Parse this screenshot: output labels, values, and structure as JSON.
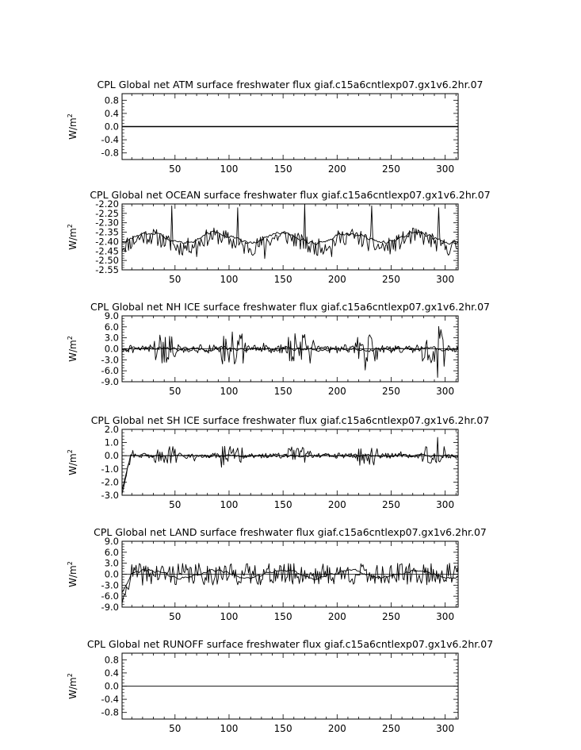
{
  "chart_data": [
    {
      "type": "line",
      "title": "CPL Global net ATM surface freshwater flux giaf.c15a6cntlexp07.gx1v6.2hr.07",
      "ylabel": "W/m",
      "ylabel_sup": "2",
      "xlim": [
        1,
        312
      ],
      "ylim": [
        -1.0,
        1.0
      ],
      "xticks": [
        50,
        100,
        150,
        200,
        250,
        300
      ],
      "yticks": [
        0.8,
        0.4,
        0.0,
        -0.4,
        -0.8
      ],
      "ytick_labels": [
        "0.8",
        "0.4",
        "0.0",
        "-0.4",
        "-0.8"
      ],
      "zero_line": true,
      "series": [
        {
          "kind": "flat",
          "value": 0.0,
          "width": 1.4
        }
      ]
    },
    {
      "type": "line",
      "title": "CPL Global net OCEAN surface freshwater flux giaf.c15a6cntlexp07.gx1v6.2hr.07",
      "ylabel": "W/m",
      "ylabel_sup": "2",
      "xlim": [
        1,
        312
      ],
      "ylim": [
        -2.55,
        -2.2
      ],
      "xticks": [
        50,
        100,
        150,
        200,
        250,
        300
      ],
      "yticks": [
        -2.2,
        -2.25,
        -2.3,
        -2.35,
        -2.4,
        -2.45,
        -2.5,
        -2.55
      ],
      "ytick_labels": [
        "-2.20",
        "-2.25",
        "-2.30",
        "-2.35",
        "-2.40",
        "-2.45",
        "-2.50",
        "-2.55"
      ],
      "zero_line": false,
      "series": [
        {
          "kind": "noise",
          "mean": -2.4,
          "seasonal": 0.03,
          "amp": 0.045,
          "seed": 11,
          "width": 0.9,
          "spikes": [
            [
              47,
              -2.21
            ],
            [
              108,
              -2.22
            ],
            [
              170,
              -2.2
            ],
            [
              232,
              -2.21
            ],
            [
              294,
              -2.22
            ],
            [
              70,
              -2.48
            ],
            [
              133,
              -2.49
            ],
            [
              195,
              -2.48
            ]
          ]
        },
        {
          "kind": "smooth",
          "mean": -2.38,
          "seasonal": 0.025,
          "amp": 0.008,
          "seed": 12,
          "width": 0.9
        }
      ]
    },
    {
      "type": "line",
      "title": "CPL Global net NH ICE surface freshwater flux giaf.c15a6cntlexp07.gx1v6.2hr.07",
      "ylabel": "W/m",
      "ylabel_sup": "2",
      "xlim": [
        1,
        312
      ],
      "ylim": [
        -9.0,
        9.0
      ],
      "xticks": [
        50,
        100,
        150,
        200,
        250,
        300
      ],
      "yticks": [
        9.0,
        6.0,
        3.0,
        0.0,
        -3.0,
        -6.0,
        -9.0
      ],
      "ytick_labels": [
        "9.0",
        "6.0",
        "3.0",
        "0.0",
        "-3.0",
        "-6.0",
        "-9.0"
      ],
      "zero_line": true,
      "series": [
        {
          "kind": "noise",
          "mean": 0.0,
          "seasonal": 0.0,
          "amp": 2.6,
          "seed": 21,
          "width": 0.9,
          "bursty": true
        },
        {
          "kind": "smooth",
          "mean": 0.0,
          "seasonal": 0.0,
          "amp": 0.4,
          "seed": 22,
          "width": 0.9
        }
      ]
    },
    {
      "type": "line",
      "title": "CPL Global net SH ICE surface freshwater flux giaf.c15a6cntlexp07.gx1v6.2hr.07",
      "ylabel": "W/m",
      "ylabel_sup": "2",
      "xlim": [
        1,
        312
      ],
      "ylim": [
        -3.0,
        2.0
      ],
      "xticks": [
        50,
        100,
        150,
        200,
        250,
        300
      ],
      "yticks": [
        2.0,
        1.0,
        0.0,
        -1.0,
        -2.0,
        -3.0
      ],
      "ytick_labels": [
        "2.0",
        "1.0",
        "0.0",
        "-1.0",
        "-2.0",
        "-3.0"
      ],
      "zero_line": true,
      "series": [
        {
          "kind": "noise",
          "mean": 0.0,
          "seasonal": 0.0,
          "amp": 0.45,
          "seed": 31,
          "width": 0.9,
          "bursty": true,
          "start_dip": -2.9
        },
        {
          "kind": "smooth",
          "mean": 0.0,
          "seasonal": 0.0,
          "amp": 0.08,
          "seed": 32,
          "width": 0.9,
          "start_dip": -2.6
        }
      ]
    },
    {
      "type": "line",
      "title": "CPL Global net LAND surface freshwater flux giaf.c15a6cntlexp07.gx1v6.2hr.07",
      "ylabel": "W/m",
      "ylabel_sup": "2",
      "xlim": [
        1,
        312
      ],
      "ylim": [
        -9.0,
        9.0
      ],
      "xticks": [
        50,
        100,
        150,
        200,
        250,
        300
      ],
      "yticks": [
        9.0,
        6.0,
        3.0,
        0.0,
        -3.0,
        -6.0,
        -9.0
      ],
      "ytick_labels": [
        "9.0",
        "6.0",
        "3.0",
        "0.0",
        "-3.0",
        "-6.0",
        "-9.0"
      ],
      "zero_line": true,
      "series": [
        {
          "kind": "noise",
          "mean": 0.0,
          "seasonal": 0.0,
          "amp": 3.0,
          "seed": 41,
          "width": 0.9,
          "start_dip": -8.0
        },
        {
          "kind": "smooth",
          "mean": 0.0,
          "seasonal": 1.0,
          "amp": 0.3,
          "seed": 42,
          "width": 0.9,
          "start_dip": -5.0
        }
      ]
    },
    {
      "type": "line",
      "title": "CPL Global net RUNOFF surface freshwater flux giaf.c15a6cntlexp07.gx1v6.2hr.07",
      "ylabel": "W/m",
      "ylabel_sup": "2",
      "xlim": [
        1,
        312
      ],
      "ylim": [
        -1.0,
        1.0
      ],
      "xticks": [
        50,
        100,
        150,
        200,
        250,
        300
      ],
      "yticks": [
        0.8,
        0.4,
        0.0,
        -0.4,
        -0.8
      ],
      "ytick_labels": [
        "0.8",
        "0.4",
        "0.0",
        "-0.4",
        "-0.8"
      ],
      "zero_line": true,
      "series": [
        {
          "kind": "flat",
          "value": 0.0,
          "width": 0.6
        }
      ]
    }
  ]
}
